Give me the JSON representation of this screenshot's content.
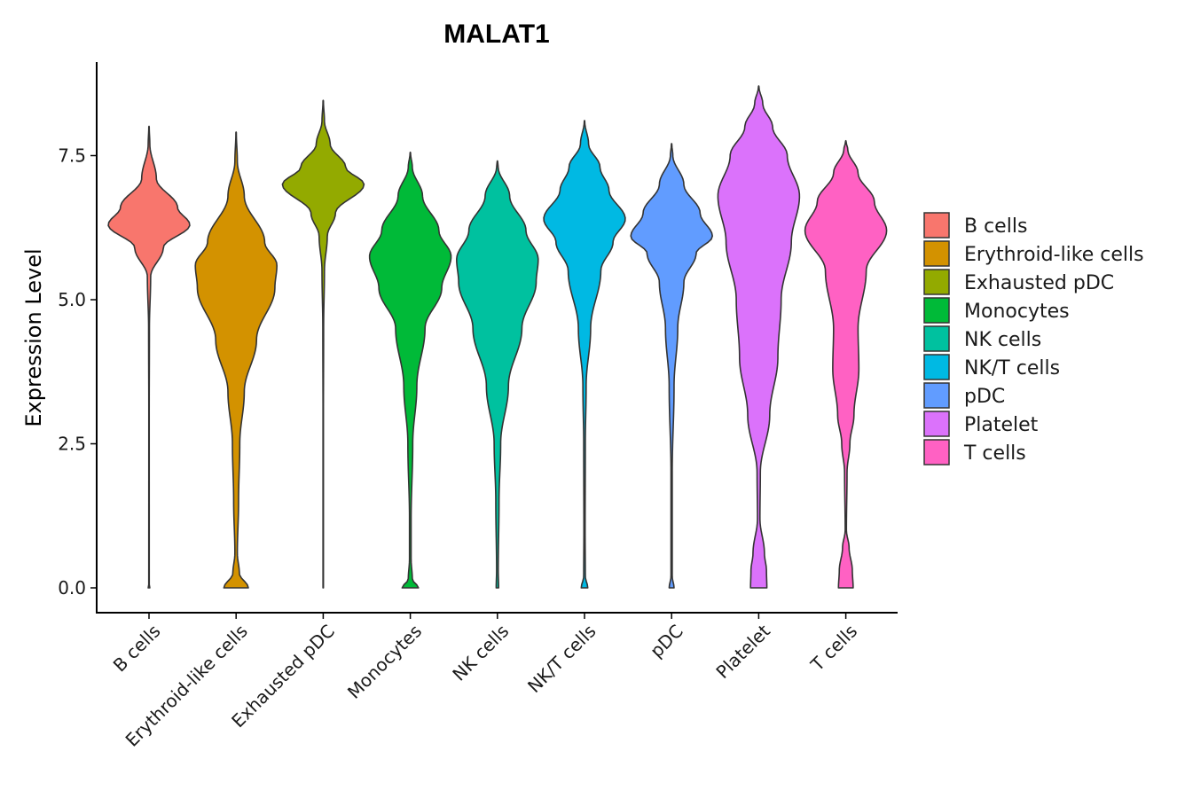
{
  "chart_data": {
    "type": "violin",
    "title": "MALAT1",
    "xlabel": "",
    "ylabel": "Expression Level",
    "ylim": [
      -0.45,
      9.15
    ],
    "yticks": [
      0.0,
      2.5,
      5.0,
      7.5
    ],
    "ytick_labels": [
      "0.0",
      "2.5",
      "5.0",
      "7.5"
    ],
    "grid": false,
    "legend_position": "right",
    "categories": [
      "B cells",
      "Erythroid-like cells",
      "Exhausted pDC",
      "Monocytes",
      "NK cells",
      "NK/T cells",
      "pDC",
      "Platelet",
      "T cells"
    ],
    "colors": [
      "#F8766D",
      "#D39200",
      "#93AA00",
      "#00BA38",
      "#00C19F",
      "#00B9E3",
      "#619CFF",
      "#DB72FB",
      "#FF61C3"
    ],
    "series": [
      {
        "name": "B cells",
        "max": 8.0,
        "profile": [
          [
            0,
            0.02
          ],
          [
            0.05,
            0.006
          ],
          [
            3.0,
            0.005
          ],
          [
            4.5,
            0.01
          ],
          [
            5.4,
            0.04
          ],
          [
            5.9,
            0.35
          ],
          [
            6.3,
            1.0
          ],
          [
            6.6,
            0.7
          ],
          [
            7.1,
            0.18
          ],
          [
            7.7,
            0.02
          ],
          [
            8.0,
            0.005
          ]
        ]
      },
      {
        "name": "Erythroid-like cells",
        "max": 7.9,
        "profile": [
          [
            0,
            0.3
          ],
          [
            0.25,
            0.08
          ],
          [
            0.6,
            0.03
          ],
          [
            1.5,
            0.06
          ],
          [
            2.5,
            0.09
          ],
          [
            3.4,
            0.2
          ],
          [
            4.3,
            0.5
          ],
          [
            5.2,
            0.95
          ],
          [
            5.6,
            1.0
          ],
          [
            6.0,
            0.7
          ],
          [
            6.8,
            0.2
          ],
          [
            7.4,
            0.03
          ],
          [
            7.9,
            0.005
          ]
        ]
      },
      {
        "name": "Exhausted pDC",
        "max": 8.45,
        "profile": [
          [
            0,
            0.005
          ],
          [
            3.0,
            0.005
          ],
          [
            4.5,
            0.01
          ],
          [
            5.5,
            0.03
          ],
          [
            6.1,
            0.1
          ],
          [
            6.5,
            0.3
          ],
          [
            7.0,
            1.0
          ],
          [
            7.3,
            0.55
          ],
          [
            7.7,
            0.17
          ],
          [
            8.1,
            0.03
          ],
          [
            8.45,
            0.005
          ]
        ]
      },
      {
        "name": "Monocytes",
        "max": 7.55,
        "profile": [
          [
            0,
            0.2
          ],
          [
            0.15,
            0.05
          ],
          [
            0.5,
            0.02
          ],
          [
            1.2,
            0.02
          ],
          [
            2.5,
            0.06
          ],
          [
            3.5,
            0.16
          ],
          [
            4.5,
            0.36
          ],
          [
            5.2,
            0.77
          ],
          [
            5.75,
            1.0
          ],
          [
            6.2,
            0.7
          ],
          [
            6.8,
            0.3
          ],
          [
            7.3,
            0.05
          ],
          [
            7.55,
            0.005
          ]
        ]
      },
      {
        "name": "NK cells",
        "max": 7.4,
        "profile": [
          [
            0,
            0.03
          ],
          [
            0.3,
            0.02
          ],
          [
            1.5,
            0.04
          ],
          [
            2.5,
            0.08
          ],
          [
            3.5,
            0.27
          ],
          [
            4.5,
            0.6
          ],
          [
            5.3,
            0.95
          ],
          [
            5.7,
            1.0
          ],
          [
            6.2,
            0.7
          ],
          [
            6.8,
            0.3
          ],
          [
            7.3,
            0.02
          ],
          [
            7.4,
            0.005
          ]
        ]
      },
      {
        "name": "NK/T cells",
        "max": 8.1,
        "profile": [
          [
            0,
            0.08
          ],
          [
            0.2,
            0.02
          ],
          [
            1.0,
            0.015
          ],
          [
            2.5,
            0.02
          ],
          [
            3.5,
            0.04
          ],
          [
            4.5,
            0.15
          ],
          [
            5.5,
            0.4
          ],
          [
            6.0,
            0.7
          ],
          [
            6.4,
            1.0
          ],
          [
            6.9,
            0.6
          ],
          [
            7.3,
            0.38
          ],
          [
            7.7,
            0.1
          ],
          [
            8.1,
            0.005
          ]
        ]
      },
      {
        "name": "pDC",
        "max": 7.7,
        "profile": [
          [
            0,
            0.06
          ],
          [
            0.2,
            0.015
          ],
          [
            2.0,
            0.015
          ],
          [
            3.5,
            0.06
          ],
          [
            4.5,
            0.15
          ],
          [
            5.3,
            0.3
          ],
          [
            5.8,
            0.6
          ],
          [
            6.1,
            1.0
          ],
          [
            6.5,
            0.7
          ],
          [
            7.0,
            0.3
          ],
          [
            7.5,
            0.03
          ],
          [
            7.7,
            0.005
          ]
        ]
      },
      {
        "name": "Platelet",
        "max": 8.7,
        "profile": [
          [
            0,
            0.2
          ],
          [
            0.3,
            0.19
          ],
          [
            0.6,
            0.14
          ],
          [
            1.2,
            0.03
          ],
          [
            2.0,
            0.04
          ],
          [
            3.0,
            0.27
          ],
          [
            4.0,
            0.47
          ],
          [
            5.0,
            0.55
          ],
          [
            6.0,
            0.8
          ],
          [
            6.8,
            1.0
          ],
          [
            7.5,
            0.7
          ],
          [
            8.0,
            0.34
          ],
          [
            8.4,
            0.1
          ],
          [
            8.7,
            0.005
          ]
        ]
      },
      {
        "name": "T cells",
        "max": 7.75,
        "profile": [
          [
            0,
            0.18
          ],
          [
            0.3,
            0.16
          ],
          [
            0.7,
            0.08
          ],
          [
            1.0,
            0.015
          ],
          [
            2.0,
            0.03
          ],
          [
            2.5,
            0.1
          ],
          [
            3.0,
            0.2
          ],
          [
            3.8,
            0.32
          ],
          [
            4.5,
            0.3
          ],
          [
            5.5,
            0.5
          ],
          [
            6.2,
            1.0
          ],
          [
            6.7,
            0.7
          ],
          [
            7.2,
            0.3
          ],
          [
            7.6,
            0.05
          ],
          [
            7.75,
            0.005
          ]
        ]
      }
    ]
  }
}
